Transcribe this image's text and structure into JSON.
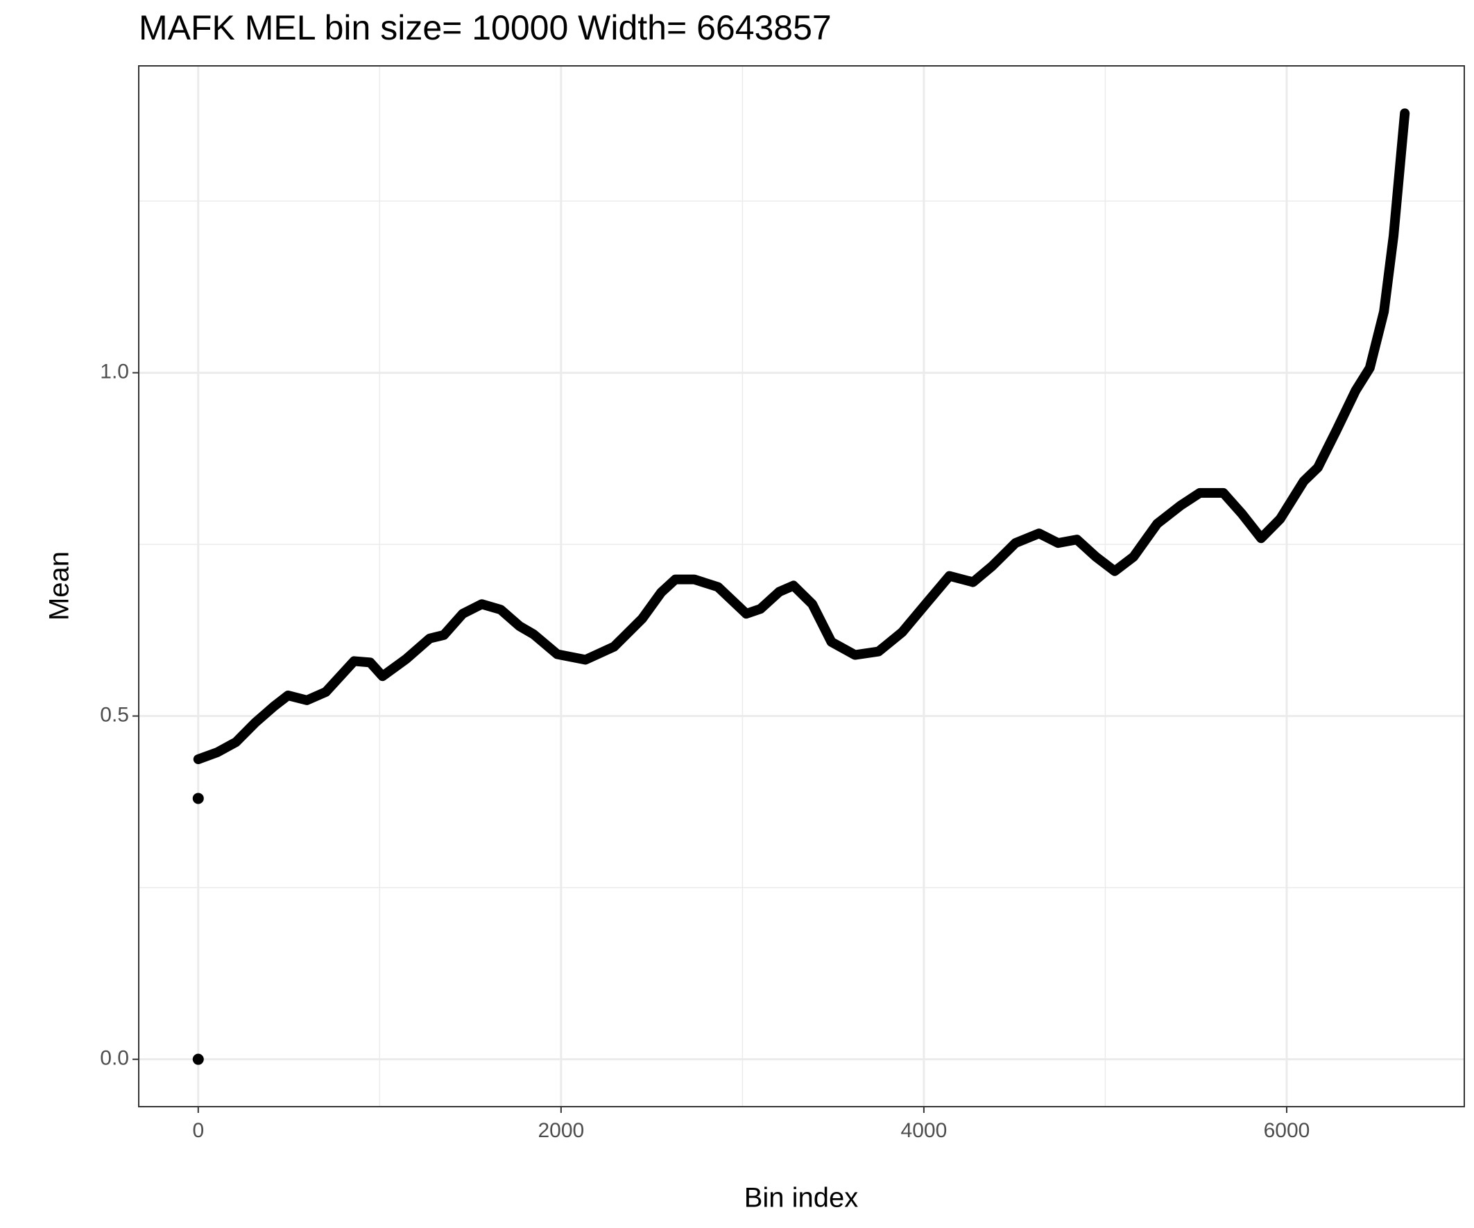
{
  "chart_data": {
    "type": "line",
    "title": "MAFK MEL  bin size=  10000  Width=  6643857",
    "xlabel": "Bin index",
    "ylabel": "Mean",
    "x": [
      0,
      104,
      208,
      313,
      417,
      495,
      599,
      703,
      859,
      948,
      1016,
      1146,
      1276,
      1354,
      1458,
      1563,
      1667,
      1771,
      1849,
      1979,
      2135,
      2292,
      2448,
      2552,
      2630,
      2734,
      2865,
      3021,
      3099,
      3203,
      3281,
      3385,
      3490,
      3620,
      3750,
      3880,
      4010,
      4141,
      4271,
      4375,
      4505,
      4635,
      4740,
      4844,
      4948,
      5052,
      5156,
      5286,
      5417,
      5521,
      5651,
      5755,
      5859,
      5964,
      6094,
      6172,
      6276,
      6380,
      6458,
      6536,
      6589,
      6651
    ],
    "values": [
      0.437,
      0.447,
      0.462,
      0.49,
      0.514,
      0.53,
      0.523,
      0.535,
      0.58,
      0.578,
      0.558,
      0.583,
      0.613,
      0.618,
      0.649,
      0.663,
      0.655,
      0.631,
      0.619,
      0.59,
      0.582,
      0.601,
      0.642,
      0.68,
      0.699,
      0.699,
      0.688,
      0.649,
      0.656,
      0.681,
      0.69,
      0.663,
      0.608,
      0.589,
      0.594,
      0.622,
      0.663,
      0.704,
      0.695,
      0.718,
      0.752,
      0.766,
      0.752,
      0.757,
      0.732,
      0.711,
      0.732,
      0.78,
      0.807,
      0.825,
      0.825,
      0.794,
      0.759,
      0.787,
      0.842,
      0.862,
      0.917,
      0.974,
      1.007,
      1.089,
      1.199,
      1.378
    ],
    "points": {
      "x": [
        0,
        0
      ],
      "values": [
        0.38,
        0
      ]
    },
    "color": "#000000",
    "xlim": [
      -328,
      6979
    ],
    "ylim": [
      -0.069,
      1.447
    ],
    "xticks": [
      0,
      2000,
      4000,
      6000
    ],
    "yticks": [
      {
        "value": 0,
        "label": "0.0"
      },
      0.5,
      {
        "value": 1,
        "label": "1.0"
      }
    ],
    "x_minor_ticks": [
      1000,
      3000,
      5000
    ],
    "y_minor_ticks": [
      0.25,
      0.75,
      1.25
    ],
    "grid": true
  }
}
